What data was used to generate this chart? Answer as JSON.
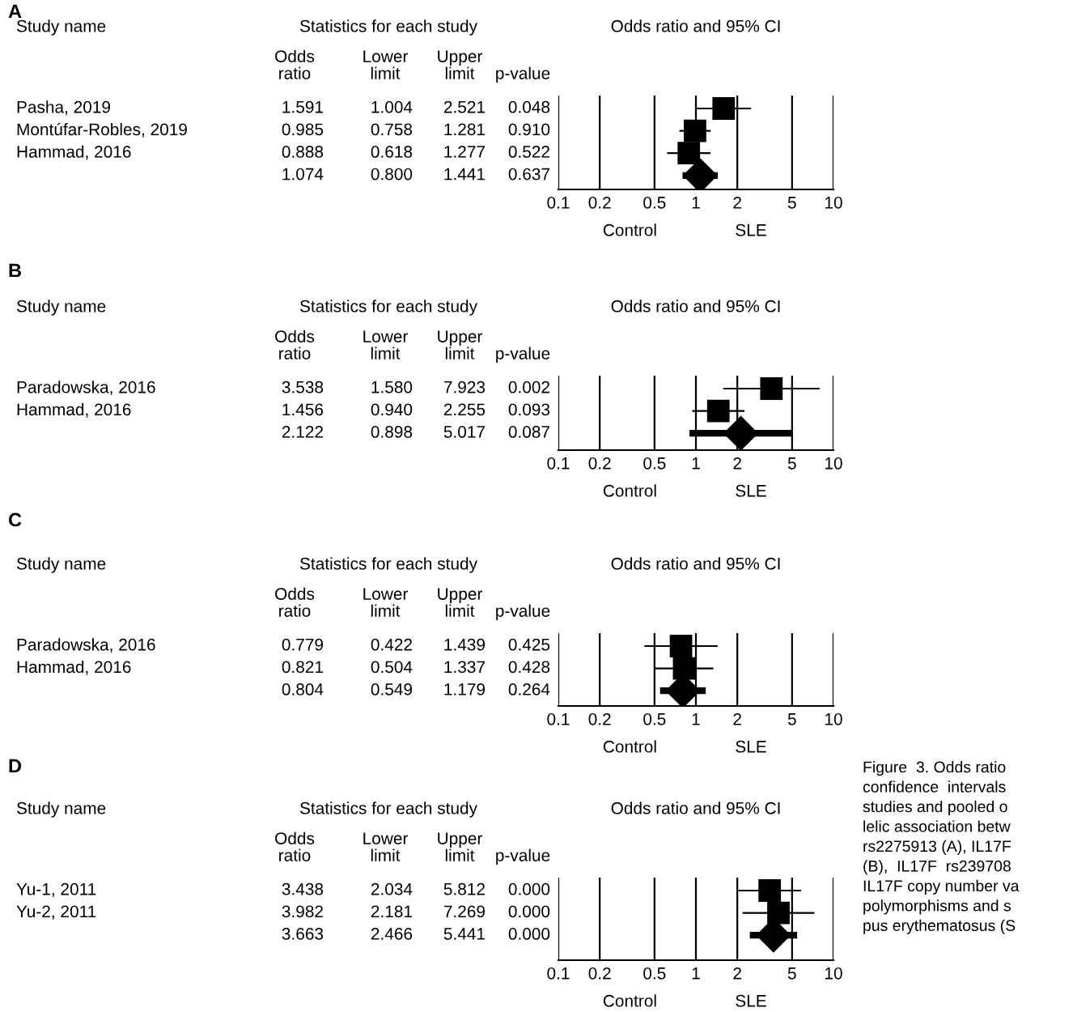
{
  "chart_data": [
    {
      "type": "scatter",
      "orientation": "horizontal",
      "subtitle": "Odds ratio and 95% CI",
      "categories": [
        "Pasha, 2019",
        "Montúfar-Robles, 2019",
        "Hammad, 2016",
        null
      ],
      "series": [
        {
          "marker": "square",
          "color": "#000000",
          "values": [
            1.591,
            0.985,
            0.888,
            null
          ],
          "errors": [
            [
              1.004,
              2.521
            ],
            [
              0.758,
              1.281
            ],
            [
              0.618,
              1.277
            ],
            null
          ]
        },
        {
          "marker": "diamond",
          "color": "#000000",
          "values": [
            null,
            null,
            null,
            1.074
          ],
          "errors": [
            null,
            null,
            null,
            [
              0.8,
              1.441
            ]
          ]
        }
      ],
      "xlim": [
        0.1,
        10
      ],
      "xticks": [
        0.1,
        0.2,
        0.5,
        1,
        2,
        5,
        10
      ],
      "log": "x",
      "grid": "x",
      "tick_labels": "x",
      "annotations": [
        "A",
        "Study name",
        "Statistics for each study",
        "Odds\nratio",
        "Lower\nlimit",
        "Upper\nlimit",
        "p-value",
        "1.591",
        "1.004",
        "2.521",
        "0.048",
        "0.985",
        "0.758",
        "1.281",
        "0.910",
        "0.888",
        "0.618",
        "1.277",
        "0.522",
        "1.074",
        "0.800",
        "1.441",
        "0.637",
        "Control",
        "SLE"
      ]
    },
    {
      "type": "scatter",
      "orientation": "horizontal",
      "subtitle": "Odds ratio and 95% CI",
      "categories": [
        "Paradowska, 2016",
        "Hammad, 2016",
        null
      ],
      "series": [
        {
          "marker": "square",
          "color": "#000000",
          "values": [
            3.538,
            1.456,
            null
          ],
          "errors": [
            [
              1.58,
              7.923
            ],
            [
              0.94,
              2.255
            ],
            null
          ]
        },
        {
          "marker": "diamond",
          "color": "#000000",
          "values": [
            null,
            null,
            2.122
          ],
          "errors": [
            null,
            null,
            [
              0.898,
              5.017
            ]
          ]
        }
      ],
      "xlim": [
        0.1,
        10
      ],
      "xticks": [
        0.1,
        0.2,
        0.5,
        1,
        2,
        5,
        10
      ],
      "log": "x",
      "grid": "x",
      "tick_labels": "x",
      "annotations": [
        "B",
        "Study name",
        "Statistics for each study",
        "Odds\nratio",
        "Lower\nlimit",
        "Upper\nlimit",
        "p-value",
        "3.538",
        "1.580",
        "7.923",
        "0.002",
        "1.456",
        "0.940",
        "2.255",
        "0.093",
        "2.122",
        "0.898",
        "5.017",
        "0.087",
        "Control",
        "SLE"
      ]
    },
    {
      "type": "scatter",
      "orientation": "horizontal",
      "subtitle": "Odds ratio and 95% CI",
      "categories": [
        "Paradowska, 2016",
        "Hammad, 2016",
        null
      ],
      "series": [
        {
          "marker": "square",
          "color": "#000000",
          "values": [
            0.779,
            0.821,
            null
          ],
          "errors": [
            [
              0.422,
              1.439
            ],
            [
              0.504,
              1.337
            ],
            null
          ]
        },
        {
          "marker": "diamond",
          "color": "#000000",
          "values": [
            null,
            null,
            0.804
          ],
          "errors": [
            null,
            null,
            [
              0.549,
              1.179
            ]
          ]
        }
      ],
      "xlim": [
        0.1,
        10
      ],
      "xticks": [
        0.1,
        0.2,
        0.5,
        1,
        2,
        5,
        10
      ],
      "log": "x",
      "grid": "x",
      "tick_labels": "x",
      "annotations": [
        "C",
        "Study name",
        "Statistics for each study",
        "Odds\nratio",
        "Lower\nlimit",
        "Upper\nlimit",
        "p-value",
        "0.779",
        "0.422",
        "1.439",
        "0.425",
        "0.821",
        "0.504",
        "1.337",
        "0.428",
        "0.804",
        "0.549",
        "1.179",
        "0.264",
        "Control",
        "SLE"
      ]
    },
    {
      "type": "scatter",
      "orientation": "horizontal",
      "subtitle": "Odds ratio and 95% CI",
      "categories": [
        "Yu-1, 2011",
        "Yu-2, 2011",
        null
      ],
      "series": [
        {
          "marker": "square",
          "color": "#000000",
          "values": [
            3.438,
            3.982,
            null
          ],
          "errors": [
            [
              2.034,
              5.812
            ],
            [
              2.181,
              7.269
            ],
            null
          ]
        },
        {
          "marker": "diamond",
          "color": "#000000",
          "values": [
            null,
            null,
            3.663
          ],
          "errors": [
            null,
            null,
            [
              2.466,
              5.441
            ]
          ]
        }
      ],
      "xlim": [
        0.1,
        10
      ],
      "xticks": [
        0.1,
        0.2,
        0.5,
        1,
        2,
        5,
        10
      ],
      "log": "x",
      "grid": "x",
      "tick_labels": "x",
      "annotations": [
        "D",
        "Study name",
        "Statistics for each study",
        "Odds\nratio",
        "Lower\nlimit",
        "Upper\nlimit",
        "p-value",
        "3.438",
        "2.034",
        "5.812",
        "0.000",
        "3.982",
        "2.181",
        "7.269",
        "0.000",
        "3.663",
        "2.466",
        "5.441",
        "0.000",
        "Control",
        "SLE",
        "Figure  3. Odds ratio\nconfidence  intervals\nstudies and pooled o\nlelic association betw\nrs2275913 (A), IL17F\n(B),  IL17F  rs239708\nIL17F copy number va\npolymorphisms and s\npus erythematosus (S"
      ]
    }
  ]
}
